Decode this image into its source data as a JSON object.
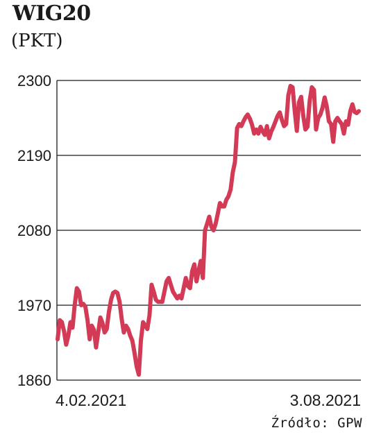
{
  "title": "WIG20",
  "unit": "(PKT)",
  "source": "Źródło: GPW",
  "colors": {
    "line": "#d23a55",
    "grid": "#1a1a1a",
    "text": "#1a1a1a"
  },
  "chart_data": {
    "type": "line",
    "title": "WIG20",
    "ylabel": "(PKT)",
    "xlabel": "",
    "ylim": [
      1860,
      2300
    ],
    "yticks": [
      "2300",
      "2190",
      "2080",
      "1970",
      "1860"
    ],
    "xtick_labels": [
      "4.02.2021",
      "3.08.2021"
    ],
    "grid": "horizontal",
    "series": [
      {
        "name": "",
        "x_range": [
          "4.02.2021",
          "3.08.2021"
        ],
        "values": [
          1920,
          1948,
          1945,
          1932,
          1912,
          1925,
          1945,
          1937,
          1970,
          1995,
          1990,
          1970,
          1972,
          1968,
          1948,
          1920,
          1940,
          1934,
          1908,
          1930,
          1952,
          1944,
          1930,
          1935,
          1960,
          1978,
          1988,
          1990,
          1988,
          1975,
          1950,
          1930,
          1940,
          1935,
          1925,
          1918,
          1900,
          1880,
          1868,
          1918,
          1945,
          1940,
          1935,
          1955,
          2000,
          1990,
          1978,
          1975,
          1975,
          1975,
          1990,
          2005,
          2010,
          2000,
          1990,
          1985,
          1980,
          1984,
          1980,
          1995,
          2010,
          1998,
          1995,
          2020,
          2030,
          2005,
          2020,
          2035,
          2010,
          2080,
          2090,
          2100,
          2085,
          2080,
          2090,
          2105,
          2120,
          2115,
          2115,
          2125,
          2130,
          2140,
          2165,
          2180,
          2230,
          2236,
          2233,
          2240,
          2246,
          2250,
          2244,
          2235,
          2222,
          2228,
          2222,
          2232,
          2225,
          2220,
          2233,
          2215,
          2225,
          2232,
          2240,
          2248,
          2253,
          2242,
          2233,
          2236,
          2278,
          2292,
          2290,
          2255,
          2226,
          2268,
          2276,
          2248,
          2228,
          2232,
          2270,
          2290,
          2286,
          2228,
          2245,
          2250,
          2260,
          2275,
          2262,
          2240,
          2236,
          2210,
          2240,
          2245,
          2240,
          2236,
          2222,
          2240,
          2235,
          2255,
          2265,
          2254,
          2252,
          2255
        ]
      }
    ]
  }
}
